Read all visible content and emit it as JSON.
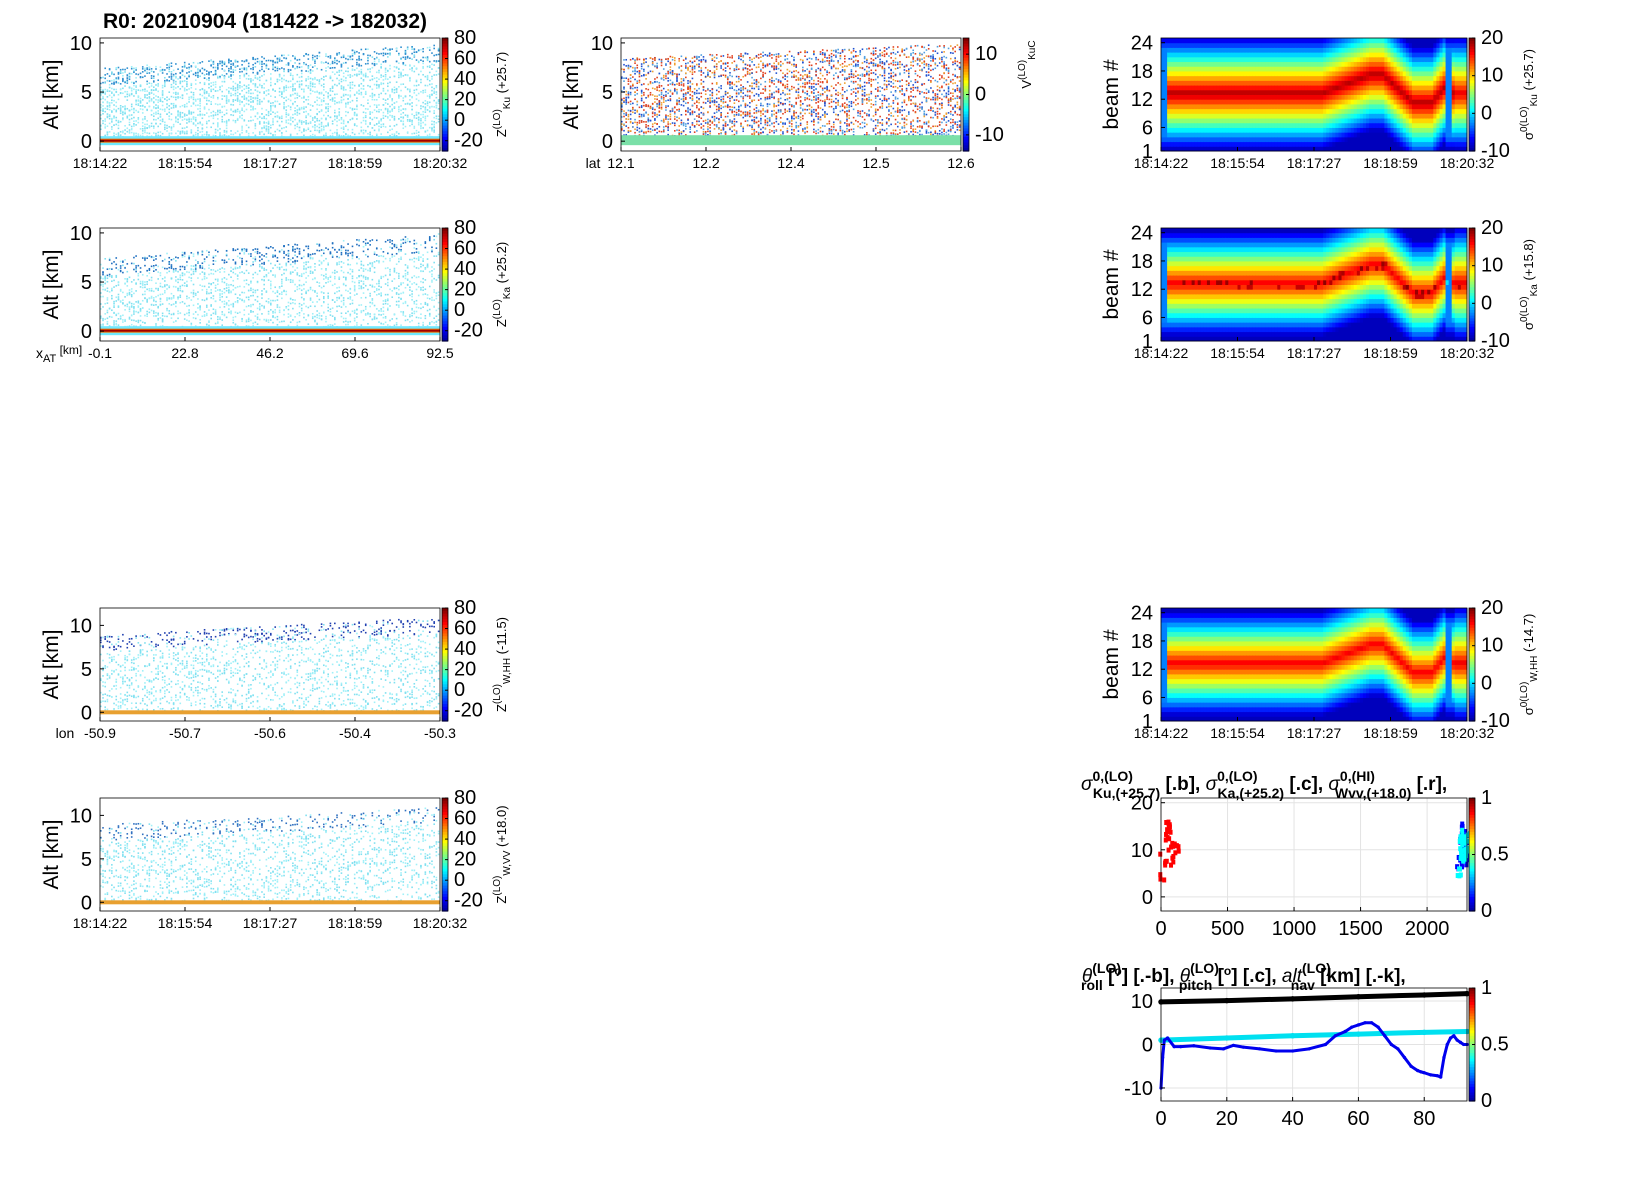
{
  "figure_title": "R0:  20210904 (181422 -> 182032)",
  "colors": {
    "jet": [
      "#00008f",
      "#0000ff",
      "#0080ff",
      "#00ffff",
      "#80ff80",
      "#ffff00",
      "#ff8000",
      "#ff0000",
      "#800000"
    ]
  },
  "chart_data": [
    {
      "id": "zku",
      "type": "heatmap",
      "ylabel": "Alt [km]",
      "yticks": [
        "0",
        "5",
        "10"
      ],
      "ylim": [
        -1,
        10.5
      ],
      "xticks": [
        "18:14:22",
        "18:15:54",
        "18:17:27",
        "18:18:59",
        "18:20:32"
      ],
      "colorbar": {
        "ticks": [
          "80",
          "60",
          "40",
          "20",
          "0",
          "-20"
        ],
        "range": [
          -30,
          80
        ],
        "label_main": "Z",
        "label_sup": "(LO)",
        "label_sub": "Ku",
        "label_offset": "(+25.7)"
      },
      "echo_top_km": [
        7.5,
        10.0
      ],
      "surface_km": 0
    },
    {
      "id": "zka",
      "type": "heatmap",
      "ylabel": "Alt [km]",
      "yticks": [
        "0",
        "5",
        "10"
      ],
      "ylim": [
        -1,
        10.5
      ],
      "xaxis_label": "x",
      "xaxis_label_sub": "AT",
      "xaxis_label_unit": "[km]",
      "xticks": [
        "-0.1",
        "22.8",
        "46.2",
        "69.6",
        "92.5"
      ],
      "colorbar": {
        "ticks": [
          "80",
          "60",
          "40",
          "20",
          "0",
          "-20"
        ],
        "range": [
          -30,
          80
        ],
        "label_main": "Z",
        "label_sup": "(LO)",
        "label_sub": "Ka",
        "label_offset": "(+25.2)"
      },
      "echo_top_km": [
        7.5,
        10.0
      ],
      "surface_km": 0
    },
    {
      "id": "vkuc",
      "type": "heatmap",
      "ylabel": "Alt [km]",
      "yticks": [
        "0",
        "5",
        "10"
      ],
      "ylim": [
        -1,
        10.5
      ],
      "xaxis_label": "lat",
      "xticks": [
        "12.1",
        "12.2",
        "12.4",
        "12.5",
        "12.6"
      ],
      "colorbar": {
        "ticks": [
          "10",
          "0",
          "-10"
        ],
        "range": [
          -14,
          14
        ],
        "label_main": "V",
        "label_sup": "(LO)",
        "label_sub": "KuC",
        "label_offset": ""
      },
      "echo_top_km": [
        8.5,
        10.0
      ],
      "surface_km": 0
    },
    {
      "id": "s0ku",
      "type": "heatmap",
      "ylabel": "beam #",
      "yticks": [
        "1",
        "6",
        "12",
        "18",
        "24"
      ],
      "ylim": [
        1,
        25
      ],
      "xticks": [
        "18:14:22",
        "18:15:54",
        "18:17:27",
        "18:18:59",
        "18:20:32"
      ],
      "colorbar": {
        "ticks": [
          "20",
          "10",
          "0",
          "-10"
        ],
        "range": [
          -10,
          20
        ],
        "label_main": "σ",
        "label_sup": "0(LO)",
        "label_sub": "Ku",
        "label_offset": "(+25.7)"
      }
    },
    {
      "id": "s0ka",
      "type": "heatmap",
      "ylabel": "beam #",
      "yticks": [
        "1",
        "6",
        "12",
        "18",
        "24"
      ],
      "ylim": [
        1,
        25
      ],
      "xticks": [
        "18:14:22",
        "18:15:54",
        "18:17:27",
        "18:18:59",
        "18:20:32"
      ],
      "colorbar": {
        "ticks": [
          "20",
          "10",
          "0",
          "-10"
        ],
        "range": [
          -10,
          20
        ],
        "label_main": "σ",
        "label_sup": "0(LO)",
        "label_sub": "Ka",
        "label_offset": "(+15.8)"
      }
    },
    {
      "id": "zwhh",
      "type": "heatmap",
      "ylabel": "Alt [km]",
      "yticks": [
        "0",
        "5",
        "10"
      ],
      "ylim": [
        -1,
        12
      ],
      "xaxis_label": "lon",
      "xticks": [
        "-50.9",
        "-50.7",
        "-50.6",
        "-50.4",
        "-50.3"
      ],
      "colorbar": {
        "ticks": [
          "80",
          "60",
          "40",
          "20",
          "0",
          "-20"
        ],
        "range": [
          -30,
          80
        ],
        "label_main": "Z",
        "label_sup": "(LO)",
        "label_sub": "W,HH",
        "label_offset": "(-11.5)"
      },
      "echo_top_km": [
        9.0,
        11.0
      ],
      "surface_km": 0
    },
    {
      "id": "zwvv",
      "type": "heatmap",
      "ylabel": "Alt [km]",
      "yticks": [
        "0",
        "5",
        "10"
      ],
      "ylim": [
        -1,
        12
      ],
      "xticks": [
        "18:14:22",
        "18:15:54",
        "18:17:27",
        "18:18:59",
        "18:20:32"
      ],
      "colorbar": {
        "ticks": [
          "80",
          "60",
          "40",
          "20",
          "0",
          "-20"
        ],
        "range": [
          -30,
          80
        ],
        "label_main": "Z",
        "label_sup": "(LO)",
        "label_sub": "W,VV",
        "label_offset": "(+18.0)"
      },
      "echo_top_km": [
        9.0,
        11.0
      ],
      "surface_km": 0
    },
    {
      "id": "s0whh",
      "type": "heatmap",
      "ylabel": "beam #",
      "yticks": [
        "1",
        "6",
        "12",
        "18",
        "24"
      ],
      "ylim": [
        1,
        25
      ],
      "xticks": [
        "18:14:22",
        "18:15:54",
        "18:17:27",
        "18:18:59",
        "18:20:32"
      ],
      "colorbar": {
        "ticks": [
          "20",
          "10",
          "0",
          "-10"
        ],
        "range": [
          -10,
          20
        ],
        "label_main": "σ",
        "label_sup": "0(LO)",
        "label_sub": "W,HH",
        "label_offset": "(-14.7)"
      }
    },
    {
      "id": "sigma_line",
      "type": "scatter",
      "title_parts": [
        {
          "sym": "σ",
          "sup": "0,(LO)",
          "sub": "Ku,(+25.7)",
          "tail": " [.b],"
        },
        {
          "sym": "σ",
          "sup": "0,(LO)",
          "sub": "Ka,(+25.2)",
          "tail": " [.c],"
        },
        {
          "sym": "σ",
          "sup": "0,(HI)",
          "sub": "Wvv,(+18.0)",
          "tail": " [.r],"
        }
      ],
      "xticks": [
        "0",
        "500",
        "1000",
        "1500",
        "2000"
      ],
      "xlim": [
        0,
        2300
      ],
      "yticks": [
        "0",
        "10",
        "20"
      ],
      "ylim": [
        -3,
        21
      ],
      "colorbar": {
        "ticks": [
          "1",
          "0.5",
          "0"
        ],
        "range": [
          0,
          1
        ]
      },
      "series": [
        {
          "name": "Ku",
          "color": "#0000ff",
          "x": [
            2230,
            2240,
            2250,
            2260,
            2270,
            2280,
            2290
          ],
          "y": [
            8,
            11,
            13,
            12.5,
            11,
            9,
            12
          ]
        },
        {
          "name": "Ka",
          "color": "#00ffff",
          "x": [
            2235,
            2245,
            2255,
            2265,
            2275,
            2285
          ],
          "y": [
            7,
            10,
            12,
            11.5,
            10,
            12
          ]
        },
        {
          "name": "Wvv",
          "color": "#ff0000",
          "x": [
            0,
            20,
            40,
            60,
            80,
            100
          ],
          "y": [
            7,
            11,
            15,
            14,
            10,
            12
          ]
        }
      ]
    },
    {
      "id": "attitude",
      "type": "line",
      "title_parts": [
        {
          "sym": "θ",
          "sup": "(LO)",
          "sub": "roll",
          "tail": " [",
          "unit_sup": "o",
          "tail2": "] [.-b],"
        },
        {
          "sym": "θ",
          "sup": "(LO)",
          "sub": "pitch",
          "tail": " [",
          "unit_sup": "o",
          "tail2": "] [.c],"
        },
        {
          "sym": "alt",
          "sup": "(LO)",
          "sub": "nav",
          "tail": " [km] [.-k],"
        }
      ],
      "xticks": [
        "0",
        "20",
        "40",
        "60",
        "80"
      ],
      "xlim": [
        0,
        93
      ],
      "yticks": [
        "-10",
        "0",
        "10"
      ],
      "ylim": [
        -13,
        13
      ],
      "colorbar": {
        "ticks": [
          "1",
          "0.5",
          "0"
        ],
        "range": [
          0,
          1
        ]
      },
      "series": [
        {
          "name": "alt",
          "color": "#000000",
          "x": [
            0,
            20,
            40,
            60,
            80,
            93
          ],
          "y": [
            9.8,
            10.1,
            10.5,
            11.0,
            11.4,
            11.7
          ]
        },
        {
          "name": "pitch",
          "color": "#00e0f0",
          "x": [
            0,
            20,
            40,
            60,
            80,
            93
          ],
          "y": [
            1.0,
            1.5,
            2.0,
            2.4,
            2.8,
            3.0
          ]
        },
        {
          "name": "roll",
          "color": "#0000ee",
          "x": [
            0,
            0.5,
            1,
            2,
            4,
            6,
            10,
            15,
            19,
            22,
            25,
            30,
            35,
            40,
            45,
            50,
            53,
            56,
            58,
            60,
            62,
            64,
            66,
            68,
            70,
            72,
            74,
            76,
            78,
            79,
            80,
            82,
            84,
            85,
            86,
            87,
            88,
            89,
            90,
            91,
            92,
            93
          ],
          "y": [
            -10,
            -3,
            1,
            1.5,
            -0.5,
            -0.5,
            -0.3,
            -0.8,
            -1,
            -0.2,
            -0.6,
            -1,
            -1.5,
            -1.5,
            -1,
            0,
            2,
            3,
            4,
            4.5,
            5,
            5,
            4,
            2,
            0,
            -1,
            -3,
            -5,
            -6,
            -6.3,
            -6.5,
            -7,
            -7.2,
            -7.5,
            -3,
            0,
            1.5,
            2,
            1,
            0.5,
            0,
            0
          ]
        }
      ]
    }
  ]
}
